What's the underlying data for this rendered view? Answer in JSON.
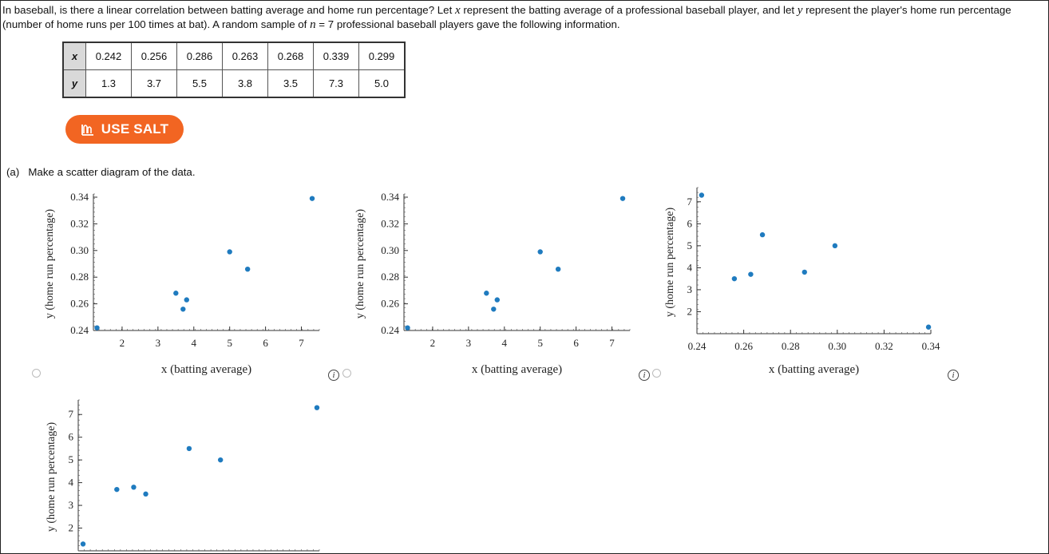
{
  "intro": {
    "text1": "In baseball, is there a linear correlation between batting average and home run percentage? Let ",
    "x": "x",
    "text2": " represent the batting average of a professional baseball player, and let ",
    "y": "y",
    "text3": " represent the player's home run percentage (number of home runs per 100 times at bat). A random sample of ",
    "n": "n",
    "text4": " = 7 professional baseball players gave the following information."
  },
  "table": {
    "x_label": "x",
    "y_label": "y",
    "x_values": [
      "0.242",
      "0.256",
      "0.286",
      "0.263",
      "0.268",
      "0.339",
      "0.299"
    ],
    "y_values": [
      "1.3",
      "3.7",
      "5.5",
      "3.8",
      "3.5",
      "7.3",
      "5.0"
    ]
  },
  "salt_button": {
    "label": "USE SALT",
    "icon": "salt-chart-icon",
    "color": "#f26522"
  },
  "part_a": {
    "label": "(a)",
    "text": "Make a scatter diagram of the data."
  },
  "info_label": "i",
  "point_color": "#1f7bbf",
  "chart_data": [
    {
      "type": "scatter",
      "xlabel": "x (batting average)",
      "ylabel": "y (home run percentage)",
      "x": [
        1.3,
        3.7,
        5.5,
        3.8,
        3.5,
        7.3,
        5.0
      ],
      "y": [
        0.242,
        0.256,
        0.286,
        0.263,
        0.268,
        0.339,
        0.299
      ],
      "xlim": [
        1.2,
        7.5
      ],
      "ylim": [
        0.24,
        0.34
      ],
      "xticks": [
        "2",
        "3",
        "4",
        "5",
        "6",
        "7"
      ],
      "yticks": [
        "0.24",
        "0.26",
        "0.28",
        "0.30",
        "0.32",
        "0.34"
      ]
    },
    {
      "type": "scatter",
      "xlabel": "x (batting average)",
      "ylabel": "y (home run percentage)",
      "x": [
        1.3,
        3.7,
        5.5,
        3.8,
        3.5,
        7.3,
        5.0
      ],
      "y": [
        0.242,
        0.256,
        0.286,
        0.263,
        0.268,
        0.339,
        0.299
      ],
      "xlim": [
        1.2,
        7.5
      ],
      "ylim": [
        0.24,
        0.34
      ],
      "xticks": [
        "2",
        "3",
        "4",
        "5",
        "6",
        "7"
      ],
      "yticks": [
        "0.24",
        "0.26",
        "0.28",
        "0.30",
        "0.32",
        "0.34"
      ]
    },
    {
      "type": "scatter",
      "xlabel": "x (batting average)",
      "ylabel": "y (home run percentage)",
      "x": [
        0.242,
        0.256,
        0.286,
        0.263,
        0.268,
        0.339,
        0.299
      ],
      "y": [
        7.3,
        3.5,
        3.8,
        3.7,
        5.5,
        1.3,
        5.0
      ],
      "xlim": [
        0.24,
        0.34
      ],
      "ylim": [
        1.0,
        7.5
      ],
      "xticks": [
        "0.24",
        "0.26",
        "0.28",
        "0.30",
        "0.32",
        "0.34"
      ],
      "yticks": [
        "2",
        "3",
        "4",
        "5",
        "6",
        "7"
      ]
    },
    {
      "type": "scatter",
      "xlabel": "",
      "ylabel": "y (home run percentage)",
      "x": [
        0.242,
        0.256,
        0.286,
        0.263,
        0.268,
        0.339,
        0.299
      ],
      "y": [
        1.3,
        3.7,
        5.5,
        3.8,
        3.5,
        7.3,
        5.0
      ],
      "xlim": [
        0.24,
        0.34
      ],
      "ylim": [
        1.0,
        7.5
      ],
      "xticks": [],
      "yticks": [
        "2",
        "3",
        "4",
        "5",
        "6",
        "7"
      ]
    }
  ]
}
